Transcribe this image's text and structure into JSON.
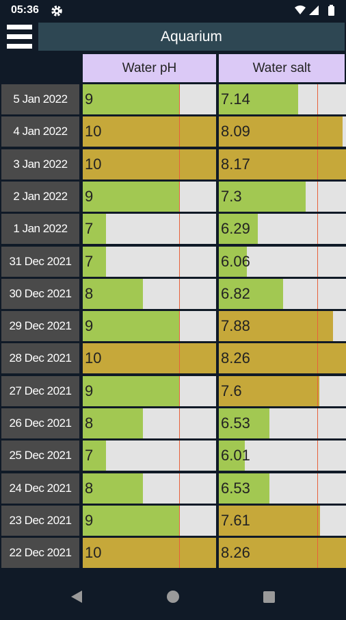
{
  "status_bar": {
    "time": "05:36"
  },
  "header": {
    "title": "Aquarium"
  },
  "columns": [
    "Water pH",
    "Water salt"
  ],
  "scales": {
    "ph": {
      "range": [
        6.37,
        10
      ],
      "limit": 9
    },
    "salt": {
      "range": [
        5.46,
        8.16
      ],
      "limit": 7.55
    }
  },
  "colors": {
    "within": "#a2c852",
    "over": "#c6a83a",
    "limit_line": "#e8603a"
  },
  "rows": [
    {
      "date": "5 Jan 2022",
      "ph": 9,
      "salt": 7.14
    },
    {
      "date": "4 Jan 2022",
      "ph": 10,
      "salt": 8.09
    },
    {
      "date": "3 Jan 2022",
      "ph": 10,
      "salt": 8.17
    },
    {
      "date": "2 Jan 2022",
      "ph": 9,
      "salt": 7.3
    },
    {
      "date": "1 Jan 2022",
      "ph": 7,
      "salt": 6.29
    },
    {
      "date": "31 Dec 2021",
      "ph": 7,
      "salt": 6.06
    },
    {
      "date": "30 Dec 2021",
      "ph": 8,
      "salt": 6.82
    },
    {
      "date": "29 Dec 2021",
      "ph": 9,
      "salt": 7.88
    },
    {
      "date": "28 Dec 2021",
      "ph": 10,
      "salt": 8.26
    },
    {
      "date": "27 Dec 2021",
      "ph": 9,
      "salt": 7.6
    },
    {
      "date": "26 Dec 2021",
      "ph": 8,
      "salt": 6.53
    },
    {
      "date": "25 Dec 2021",
      "ph": 7,
      "salt": 6.01
    },
    {
      "date": "24 Dec 2021",
      "ph": 8,
      "salt": 6.53
    },
    {
      "date": "23 Dec 2021",
      "ph": 9,
      "salt": 7.61
    },
    {
      "date": "22 Dec 2021",
      "ph": 10,
      "salt": 8.26
    }
  ]
}
